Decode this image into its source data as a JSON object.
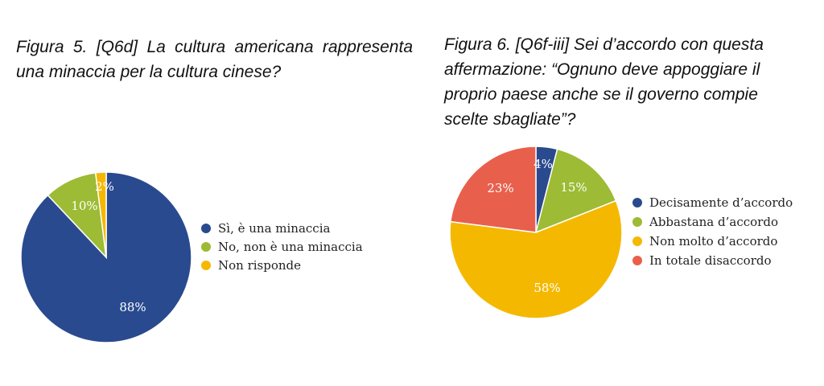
{
  "chart_data": [
    {
      "type": "pie",
      "title": "Figura 5. [Q6d] La cultura americana rappresenta una minaccia per la cultura cinese?",
      "categories": [
        "Sì, è una minaccia",
        "No, non è una minaccia",
        "Non risponde"
      ],
      "values": [
        88,
        10,
        2
      ],
      "labels": [
        "88%",
        "10%",
        "2%"
      ],
      "colors": [
        "#2a4a8f",
        "#9dbb34",
        "#f5b800"
      ],
      "legend_position": "right"
    },
    {
      "type": "pie",
      "title": "Figura 6. [Q6f-iii] Sei d’accordo con questa affermazione: “Ognuno deve appoggiare il proprio paese anche se il governo compie scelte sbagliate”?",
      "categories": [
        "Decisamente d’accordo",
        "Abbastana d’accordo",
        "Non molto d’accordo",
        "In totale disaccordo"
      ],
      "values": [
        4,
        15,
        58,
        23
      ],
      "labels": [
        "4%",
        "15%",
        "58%",
        "23%"
      ],
      "colors": [
        "#2a4a8f",
        "#9dbb34",
        "#f5b800",
        "#e8604c"
      ],
      "legend_position": "right"
    }
  ]
}
